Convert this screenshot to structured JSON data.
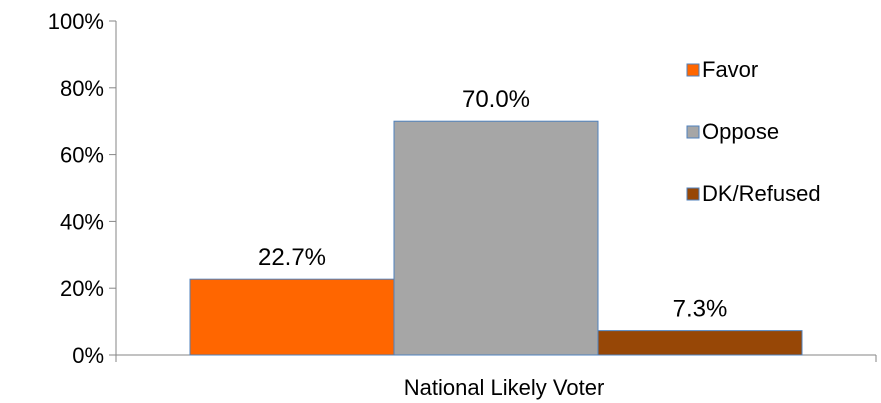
{
  "chart_data": {
    "type": "bar",
    "categories": [
      "National Likely Voter"
    ],
    "series": [
      {
        "name": "Favor",
        "values": [
          22.7
        ],
        "label": "22.7%",
        "color": "#ff6600"
      },
      {
        "name": "Oppose",
        "values": [
          70.0
        ],
        "label": "70.0%",
        "color": "#a6a6a6"
      },
      {
        "name": "DK/Refused",
        "values": [
          7.3
        ],
        "label": "7.3%",
        "color": "#974706"
      }
    ],
    "title": "",
    "xlabel": "",
    "ylabel": "",
    "ylim": [
      0,
      100
    ],
    "yticks": [
      "0%",
      "20%",
      "40%",
      "60%",
      "80%",
      "100%"
    ],
    "ytick_values": [
      0,
      20,
      40,
      60,
      80,
      100
    ],
    "legend_position": "right",
    "grid": false
  }
}
